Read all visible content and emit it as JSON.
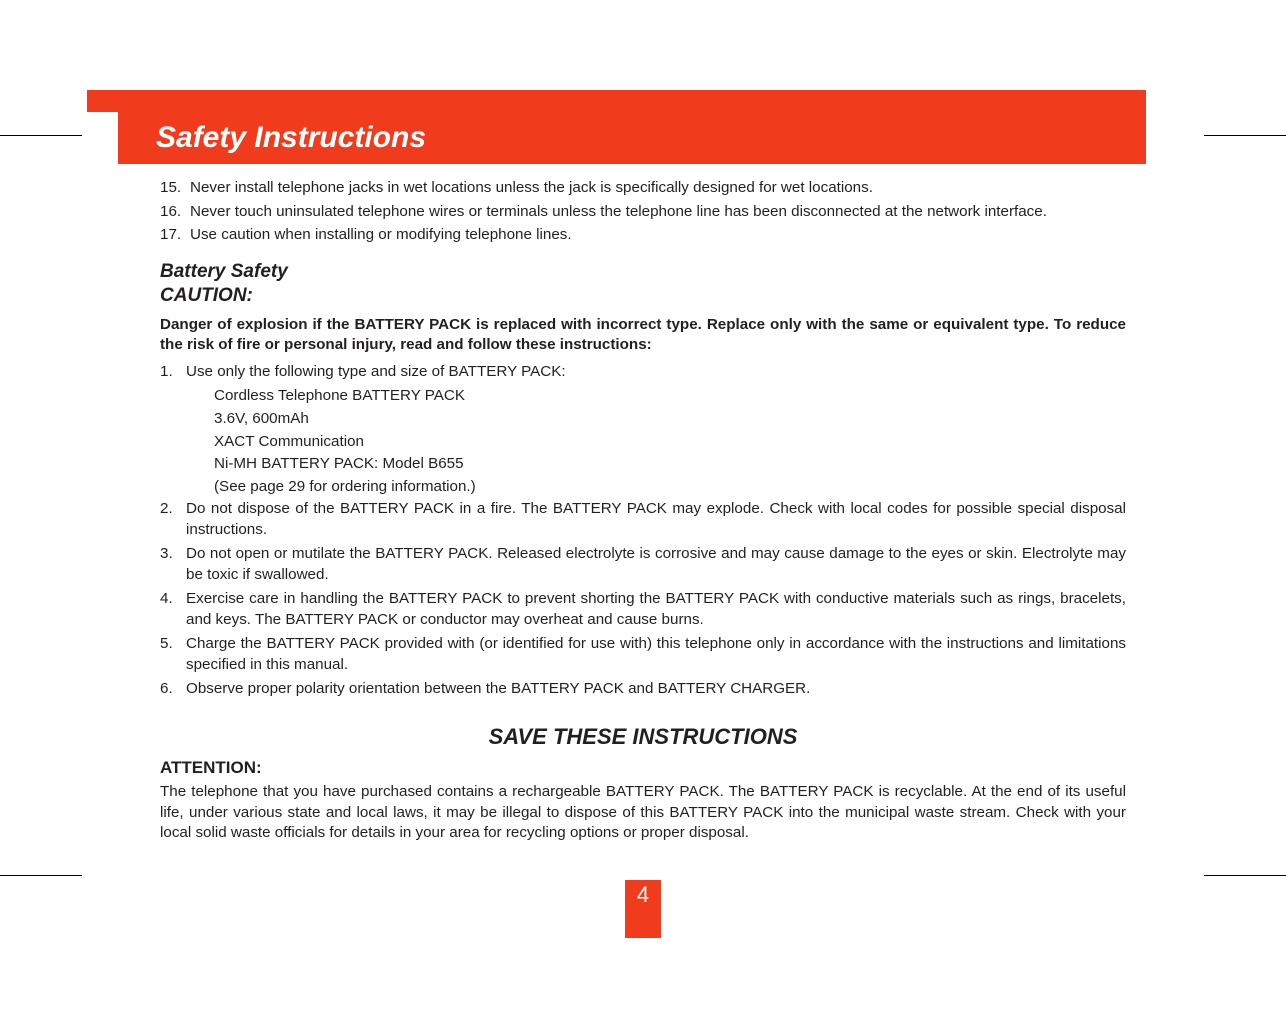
{
  "colors": {
    "primary": "#f03c1c",
    "text": "#231f20",
    "background": "#ffffff",
    "title_text": "#ffffff"
  },
  "typography": {
    "body_fontsize": 15.2,
    "title_fontsize": 30,
    "section_heading_fontsize": 19,
    "save_heading_fontsize": 22,
    "attention_label_fontsize": 17,
    "page_number_fontsize": 22
  },
  "page": {
    "title": "Safety Instructions",
    "number": "4"
  },
  "top_list": [
    {
      "num": "15.",
      "text": "Never install telephone jacks in wet locations unless the jack is specifically designed for wet locations."
    },
    {
      "num": "16.",
      "text": "Never touch uninsulated telephone wires or terminals unless the telephone line has been disconnected at the network interface."
    },
    {
      "num": "17.",
      "text": "Use caution when installing or modifying telephone lines."
    }
  ],
  "battery": {
    "heading_line1": "Battery Safety",
    "heading_line2": "CAUTION:",
    "warning": "Danger of explosion if the BATTERY PACK is replaced with incorrect type. Replace only with the same or equivalent type. To reduce the risk of fire or personal injury, read and follow these instructions:",
    "items": [
      {
        "num": "1.",
        "text": "Use only the following type and size of BATTERY PACK:",
        "sub": [
          "Cordless Telephone BATTERY PACK",
          "3.6V, 600mAh",
          "XACT Communication",
          " Ni-MH BATTERY PACK: Model B655",
          "(See page 29 for ordering information.)"
        ]
      },
      {
        "num": "2.",
        "text": "Do not dispose of the BATTERY PACK in a fire. The BATTERY PACK may explode. Check with local codes for possible special disposal instructions."
      },
      {
        "num": "3.",
        "text": "Do not open or mutilate the BATTERY PACK. Released electrolyte is corrosive and may cause damage to the eyes or skin. Electrolyte may be toxic if swallowed."
      },
      {
        "num": "4.",
        "text": "Exercise care in handling the BATTERY PACK to prevent shorting the BATTERY PACK with conductive materials such as rings, bracelets, and keys. The BATTERY PACK or conductor may overheat and cause burns."
      },
      {
        "num": "5.",
        "text": "Charge the BATTERY PACK provided with (or identified for use with) this telephone only in accordance with the instructions and limitations specified in this manual."
      },
      {
        "num": "6.",
        "text": "Observe proper polarity orientation between the BATTERY PACK and BATTERY CHARGER."
      }
    ]
  },
  "save_heading": "SAVE THESE INSTRUCTIONS",
  "attention": {
    "label": "ATTENTION:",
    "text": "The telephone that you have purchased contains a rechargeable BATTERY PACK. The BATTERY PACK is recyclable. At the end of its useful life, under various state and local laws, it may be illegal to dispose of this BATTERY PACK into the municipal waste stream. Check with your local solid waste officials for details in your area for recycling options or proper disposal."
  }
}
